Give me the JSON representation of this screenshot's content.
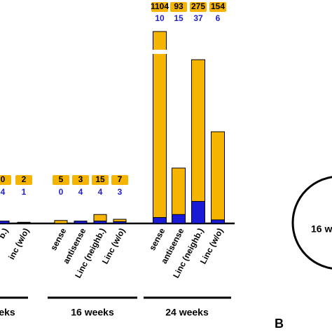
{
  "chart_data": {
    "type": "bar",
    "total_color": "#f5b400",
    "subset_color": "#1a1ad6",
    "groups": [
      {
        "label": "eks",
        "categories": [
          "b.)",
          "inc (w/o)"
        ],
        "totals": [
          0,
          2
        ],
        "subset": [
          4,
          1
        ]
      },
      {
        "label": "16 weeks",
        "categories": [
          "sense",
          "antisense",
          "Linc (neighb.)",
          "Linc (w/o)"
        ],
        "totals": [
          5,
          3,
          15,
          7
        ],
        "subset": [
          0,
          4,
          4,
          3
        ]
      },
      {
        "label": "24 weeks",
        "categories": [
          "sense",
          "antisense",
          "Linc (neighb.)",
          "Linc (w/o)"
        ],
        "totals": [
          1104,
          93,
          275,
          154
        ],
        "subset": [
          10,
          15,
          37,
          6
        ]
      }
    ],
    "circle_label": "16 w",
    "panel_label": "B"
  }
}
